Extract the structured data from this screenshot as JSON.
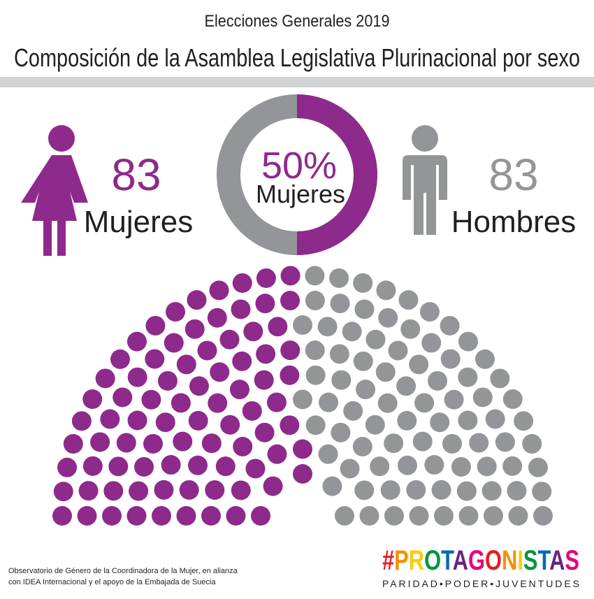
{
  "header": {
    "subtitle": "Elecciones Generales 2019",
    "title": "Composición de la Asamblea Legislativa Plurinacional por sexo"
  },
  "women": {
    "count": 83,
    "label": "Mujeres",
    "color": "#8e2a8b"
  },
  "men": {
    "count": 83,
    "label": "Hombres",
    "color": "#939598"
  },
  "donut": {
    "value": 50,
    "label": "50%",
    "caption": "Mujeres"
  },
  "footer": {
    "credit": [
      "Observatorio de Género de la Coordinadora de la Mujer, en alianza",
      "con IDEA Internacional y el apoyo de la Embajada de Suecia"
    ],
    "logo": "#PROTAGONISTAS",
    "tagline": "PARIDAD•PODER•JUVENTUDES"
  }
}
